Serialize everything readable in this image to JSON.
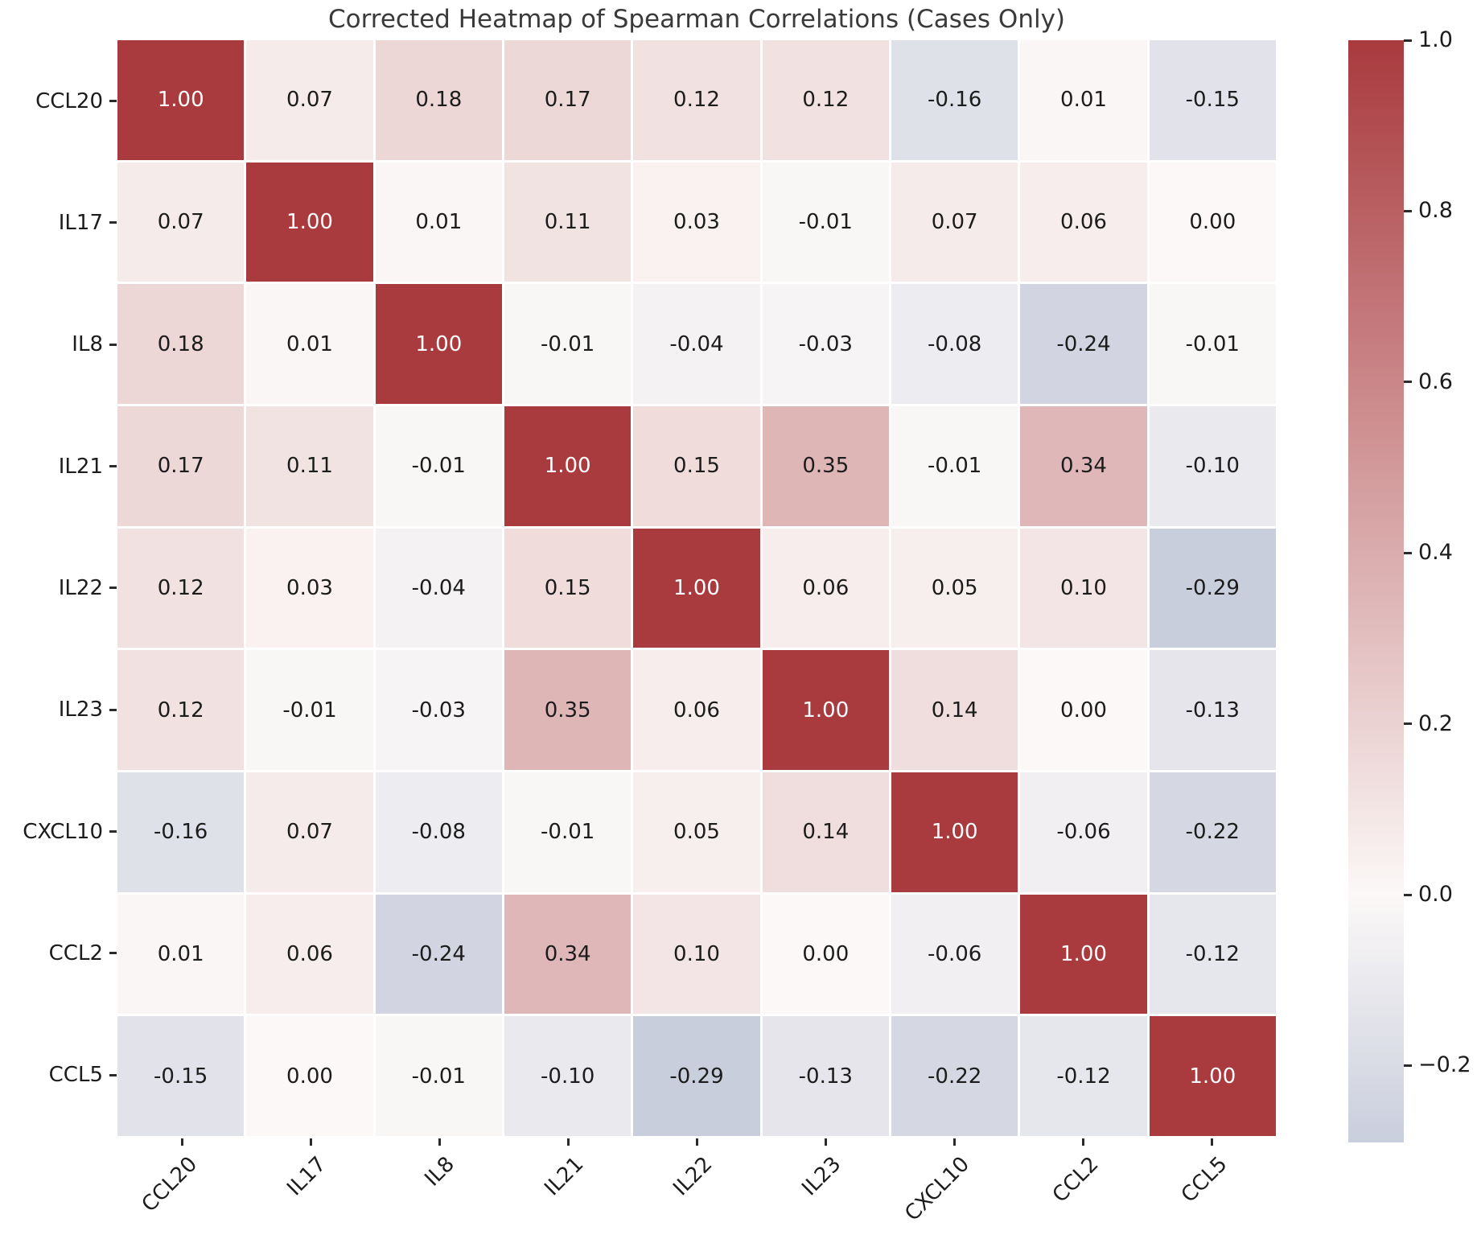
{
  "title": "Corrected Heatmap of Spearman Correlations (Cases Only)",
  "chart_data": {
    "type": "heatmap",
    "labels": [
      "CCL20",
      "IL17",
      "IL8",
      "IL21",
      "IL22",
      "IL23",
      "CXCL10",
      "CCL2",
      "CCL5"
    ],
    "matrix": [
      [
        1.0,
        0.07,
        0.18,
        0.17,
        0.12,
        0.12,
        -0.16,
        0.01,
        -0.15
      ],
      [
        0.07,
        1.0,
        0.01,
        0.11,
        0.03,
        -0.01,
        0.07,
        0.06,
        0.0
      ],
      [
        0.18,
        0.01,
        1.0,
        -0.01,
        -0.04,
        -0.03,
        -0.08,
        -0.24,
        -0.01
      ],
      [
        0.17,
        0.11,
        -0.01,
        1.0,
        0.15,
        0.35,
        -0.01,
        0.34,
        -0.1
      ],
      [
        0.12,
        0.03,
        -0.04,
        0.15,
        1.0,
        0.06,
        0.05,
        0.1,
        -0.29
      ],
      [
        0.12,
        -0.01,
        -0.03,
        0.35,
        0.06,
        1.0,
        0.14,
        0.0,
        -0.13
      ],
      [
        -0.16,
        0.07,
        -0.08,
        -0.01,
        0.05,
        0.14,
        1.0,
        -0.06,
        -0.22
      ],
      [
        0.01,
        0.06,
        -0.24,
        0.34,
        0.1,
        0.0,
        -0.06,
        1.0,
        -0.12
      ],
      [
        -0.15,
        0.0,
        -0.01,
        -0.1,
        -0.29,
        -0.13,
        -0.22,
        -0.12,
        1.0
      ]
    ],
    "value_decimals": 2,
    "colors": {
      "positive_max": "#a93a3e",
      "zero": "#fbf8f7",
      "negative_min": "#c9cedd",
      "annotation_dark": "#1c1c1c",
      "annotation_light": "#ffffff"
    },
    "colorbar": {
      "vmin": -0.29,
      "vmax": 1.0,
      "tick_values": [
        1.0,
        0.8,
        0.6,
        0.4,
        0.2,
        0.0,
        -0.2
      ],
      "tick_labels": [
        "1.0",
        "0.8",
        "0.6",
        "0.4",
        "0.2",
        "0.0",
        "−0.2"
      ]
    }
  }
}
